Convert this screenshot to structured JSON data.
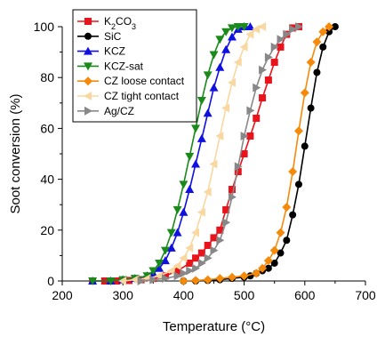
{
  "chart_data": {
    "type": "line",
    "xlabel": "Temperature (°C)",
    "ylabel": "Soot conversion (%)",
    "xlim": [
      200,
      700
    ],
    "ylim": [
      0,
      100
    ],
    "xticks": [
      200,
      300,
      400,
      500,
      600,
      700
    ],
    "yticks": [
      0,
      20,
      40,
      60,
      80,
      100
    ],
    "legend_position": "top-left",
    "series": [
      {
        "name": "K2CO3",
        "color": "#e8131b",
        "marker": "square",
        "x": [
          250,
          270,
          290,
          310,
          330,
          350,
          370,
          390,
          410,
          420,
          430,
          440,
          450,
          460,
          470,
          480,
          490,
          500,
          510,
          520,
          530,
          540,
          550,
          560,
          570,
          580,
          590
        ],
        "y": [
          0,
          0,
          0,
          0.2,
          0.5,
          1,
          2,
          4,
          7,
          9,
          11,
          14,
          17,
          20,
          28,
          36,
          43,
          50,
          57,
          64,
          72,
          79,
          86,
          92,
          97,
          99.5,
          100
        ]
      },
      {
        "name": "SiC",
        "color": "#000000",
        "marker": "circle",
        "x": [
          400,
          420,
          440,
          460,
          480,
          500,
          510,
          520,
          530,
          540,
          550,
          560,
          570,
          580,
          590,
          600,
          610,
          620,
          630,
          640,
          650
        ],
        "y": [
          0,
          0,
          0.2,
          0.5,
          1,
          1.5,
          2,
          3,
          4,
          5,
          7,
          11,
          16,
          26,
          38,
          53,
          68,
          82,
          92,
          98,
          100
        ]
      },
      {
        "name": "KCZ",
        "color": "#1010e0",
        "marker": "triangle-up",
        "x": [
          250,
          280,
          300,
          320,
          340,
          350,
          360,
          370,
          380,
          390,
          400,
          410,
          420,
          430,
          440,
          450,
          460,
          470,
          480,
          490,
          500,
          510
        ],
        "y": [
          0,
          0,
          0.5,
          1,
          2,
          3,
          5,
          8,
          13,
          19,
          27,
          36,
          46,
          56,
          66,
          76,
          84,
          91,
          96,
          99,
          100,
          100
        ]
      },
      {
        "name": "KCZ-sat",
        "color": "#1a8a1a",
        "marker": "triangle-down",
        "x": [
          250,
          280,
          300,
          320,
          340,
          350,
          360,
          370,
          380,
          390,
          400,
          410,
          420,
          430,
          440,
          450,
          460,
          470,
          480,
          490,
          500
        ],
        "y": [
          0,
          0,
          0.5,
          1,
          2,
          4,
          7,
          12,
          19,
          28,
          38,
          49,
          60,
          71,
          81,
          89,
          95,
          98,
          99.5,
          100,
          100
        ]
      },
      {
        "name": "CZ loose contact",
        "color": "#f58a0a",
        "marker": "diamond",
        "x": [
          400,
          420,
          440,
          460,
          480,
          500,
          520,
          530,
          540,
          550,
          560,
          570,
          580,
          590,
          600,
          610,
          620,
          630,
          640
        ],
        "y": [
          0,
          0.2,
          0.5,
          1,
          1.5,
          2,
          3,
          5,
          8,
          12,
          19,
          29,
          43,
          59,
          74,
          86,
          94,
          98,
          100
        ]
      },
      {
        "name": "CZ tight contact",
        "color": "#f9d7a0",
        "marker": "triangle-left",
        "x": [
          300,
          320,
          340,
          360,
          380,
          390,
          400,
          410,
          420,
          430,
          440,
          450,
          460,
          470,
          480,
          490,
          500,
          510,
          520,
          530
        ],
        "y": [
          0,
          0.5,
          1,
          2,
          4,
          6,
          9,
          13,
          19,
          27,
          35,
          46,
          57,
          68,
          78,
          86,
          92,
          97,
          99,
          100
        ]
      },
      {
        "name": "Ag/CZ",
        "color": "#888888",
        "marker": "triangle-right",
        "x": [
          330,
          350,
          370,
          390,
          400,
          410,
          420,
          430,
          440,
          450,
          460,
          470,
          480,
          490,
          500,
          510,
          520,
          530,
          540,
          550,
          560,
          570,
          580,
          590
        ],
        "y": [
          0,
          0.5,
          1,
          2,
          3,
          4,
          5,
          7,
          9,
          12,
          16,
          23,
          33,
          45,
          57,
          67,
          76,
          83,
          88,
          92,
          95,
          97,
          99,
          100
        ]
      }
    ]
  }
}
